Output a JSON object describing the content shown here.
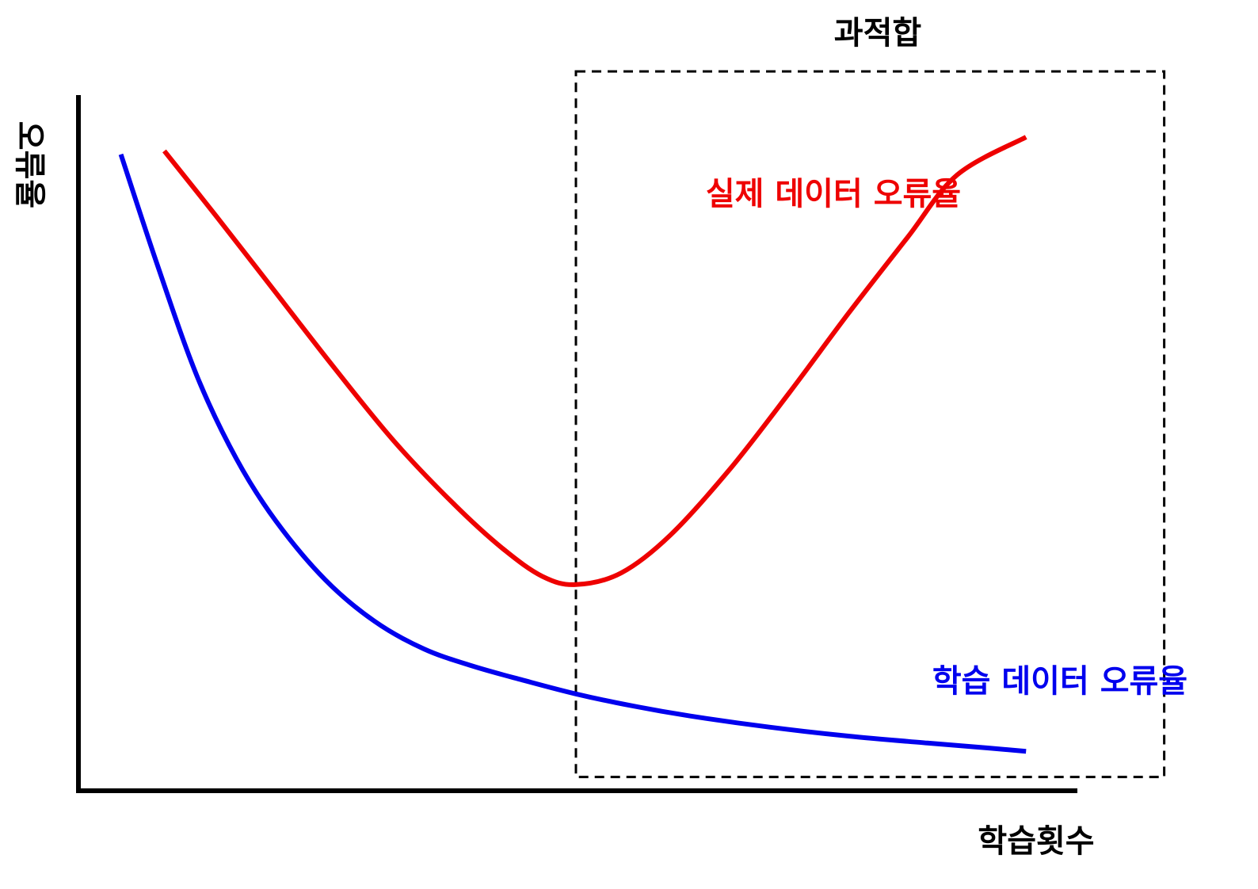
{
  "chart_data": {
    "type": "line",
    "title": "",
    "xlabel": "학습횟수",
    "ylabel": "오류율",
    "xlim": [
      0,
      100
    ],
    "ylim": [
      0,
      100
    ],
    "axis_ticks": false,
    "grid": false,
    "series": [
      {
        "name": "실제 데이터 오류율",
        "color": "#ee0000",
        "x": [
          8.7,
          14,
          20,
          26,
          32,
          38,
          43,
          47,
          50.4,
          55,
          60,
          66,
          72,
          78,
          84,
          89,
          96
        ],
        "y": [
          92.5,
          83,
          72,
          61,
          50.5,
          41.5,
          35,
          31,
          29.8,
          31.5,
          37,
          46.5,
          57.5,
          69,
          80,
          89,
          94.5
        ]
      },
      {
        "name": "학습 데이터 오류율",
        "color": "#0000ee",
        "x": [
          4.3,
          8,
          12,
          16,
          20,
          25,
          30,
          35,
          40,
          45,
          50.4,
          56,
          62,
          70,
          78,
          86,
          92,
          96
        ],
        "y": [
          92,
          76,
          60,
          48,
          39,
          30.5,
          24.5,
          20.5,
          18,
          16,
          14,
          12.3,
          10.8,
          9.2,
          7.9,
          6.9,
          6.2,
          5.7
        ]
      }
    ],
    "annotations": [
      {
        "type": "region",
        "label": "과적합",
        "x_range": [
          50.4,
          110
        ],
        "y_range": [
          2,
          104
        ],
        "style": "dashed",
        "color": "#000000"
      }
    ]
  }
}
